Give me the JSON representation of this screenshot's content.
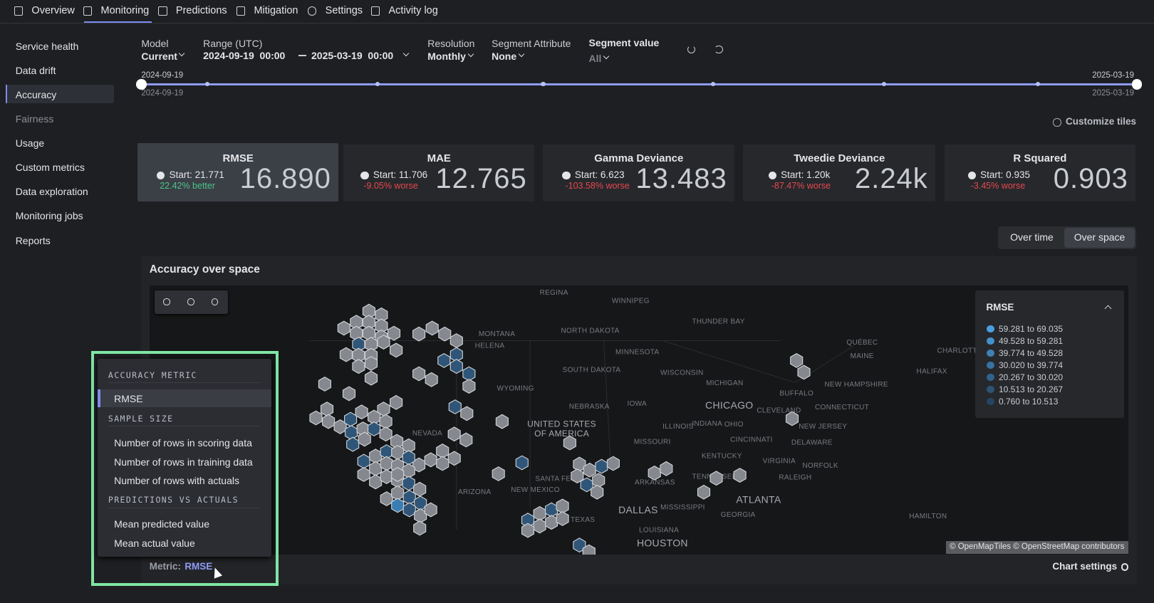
{
  "nav": {
    "tabs": [
      "Overview",
      "Monitoring",
      "Predictions",
      "Mitigation",
      "Settings",
      "Activity log"
    ],
    "active": 1
  },
  "sidebar": {
    "items": [
      "Service health",
      "Data drift",
      "Accuracy",
      "Fairness",
      "Usage",
      "Custom metrics",
      "Data exploration",
      "Monitoring jobs",
      "Reports"
    ],
    "active": 2,
    "dimmed": 3
  },
  "filters": {
    "model": {
      "label": "Model",
      "value": "Current"
    },
    "range": {
      "label": "Range (UTC)",
      "start": "2024-09-19  00:00",
      "end": "2025-03-19  00:00"
    },
    "resolution": {
      "label": "Resolution",
      "value": "Monthly"
    },
    "segment_attribute": {
      "label": "Segment Attribute",
      "value": "None"
    },
    "segment_value": {
      "label": "Segment value",
      "value": "All"
    }
  },
  "timeline": {
    "start_top": "2024-09-19",
    "start_bottom": "2024-09-19",
    "end_top": "2025-03-19",
    "end_bottom": "2025-03-19"
  },
  "customize_tiles": "Customize tiles",
  "tiles": [
    {
      "name": "RMSE",
      "start": "Start: 21.771",
      "change": "22.42% better",
      "value": "16.890",
      "change_color": "#4cc38a"
    },
    {
      "name": "MAE",
      "start": "Start: 11.706",
      "change": "-9.05% worse",
      "value": "12.765",
      "change_color": "#e5484d"
    },
    {
      "name": "Gamma Deviance",
      "start": "Start: 6.623",
      "change": "-103.58% worse",
      "value": "13.483",
      "change_color": "#e5484d"
    },
    {
      "name": "Tweedie Deviance",
      "start": "Start: 1.20k",
      "change": "-87.47% worse",
      "value": "2.24k",
      "change_color": "#e5484d"
    },
    {
      "name": "R Squared",
      "start": "Start: 0.935",
      "change": "-3.45% worse",
      "value": "0.903",
      "change_color": "#e5484d"
    }
  ],
  "selected_tile": 0,
  "view_toggle": {
    "options": [
      "Over time",
      "Over space"
    ],
    "active": 1
  },
  "map": {
    "title": "Accuracy over space",
    "labels": [
      "REGINA",
      "WINNIPEG",
      "THUNDER BAY",
      "QUÉBEC",
      "CHARLOTTETOWN",
      "MONTANA",
      "HELENA",
      "NORTH DAKOTA",
      "MINNESOTA",
      "MAINE",
      "HALIFAX",
      "SOUTH DAKOTA",
      "WISCONSIN",
      "MICHIGAN",
      "WYOMING",
      "NEW HAMPSHIRE",
      "BUFFALO",
      "NEBRASKA",
      "IOWA",
      "CHICAGO",
      "CONNECTICUT",
      "CLEVELAND",
      "INDIANA",
      "OHIO",
      "ILLINOIS",
      "NEW JERSEY",
      "UNITED STATES",
      "OF AMERICA",
      "NEVADA",
      "CINCINNATI",
      "DELAWARE",
      "MISSOURI",
      "KENTUCKY",
      "VIRGINIA",
      "NORFOLK",
      "SANTA FE",
      "TENNESSEE",
      "RALEIGH",
      "ARKANSAS",
      "NEW MEXICO",
      "ARIZONA",
      "ATLANTA",
      "DALLAS",
      "MISSISSIPPI",
      "GEORGIA",
      "HAMILTON",
      "TEXAS",
      "LOUISIANA",
      "HOUSTON"
    ],
    "attribution": "© OpenMapTiles © OpenStreetMap contributors"
  },
  "legend": {
    "title": "RMSE",
    "bins": [
      {
        "label": "59.281 to 69.035",
        "color": "#4a9fe0"
      },
      {
        "label": "49.528 to 59.281",
        "color": "#4490cb"
      },
      {
        "label": "39.774 to 49.528",
        "color": "#3e81b6"
      },
      {
        "label": "30.020 to 39.774",
        "color": "#3872a1"
      },
      {
        "label": "20.267 to 30.020",
        "color": "#32638c"
      },
      {
        "label": "10.513 to 20.267",
        "color": "#2c5477"
      },
      {
        "label": "0.760 to 10.513",
        "color": "#264562"
      }
    ]
  },
  "menu": {
    "sections": [
      {
        "heading": "ACCURACY METRIC",
        "items": [
          "RMSE"
        ]
      },
      {
        "heading": "SAMPLE SIZE",
        "items": [
          "Number of rows in scoring data",
          "Number of rows in training data",
          "Number of rows with actuals"
        ]
      },
      {
        "heading": "PREDICTIONS VS ACTUALS",
        "items": [
          "Mean predicted value",
          "Mean actual value"
        ]
      }
    ]
  },
  "footer": {
    "metric_label": "Metric:",
    "metric_value": "RMSE",
    "chart_settings": "Chart settings"
  }
}
